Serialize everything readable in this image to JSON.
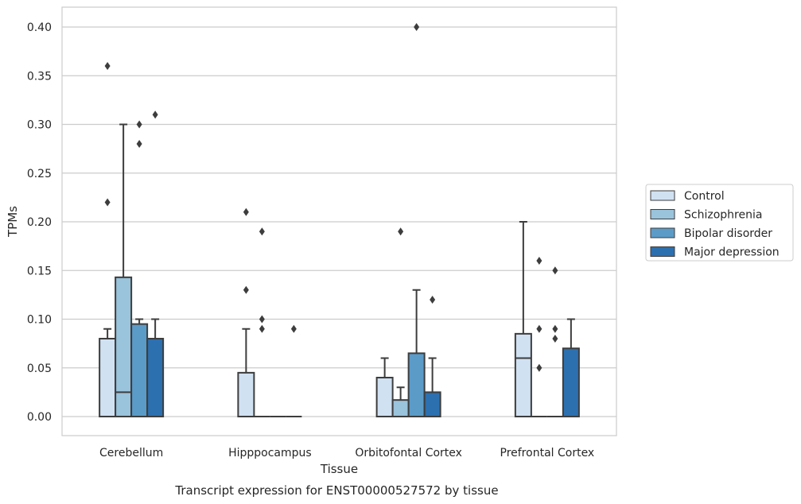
{
  "chart_data": {
    "type": "box",
    "title": "Transcript expression for ENST00000527572 by tissue",
    "xlabel": "Tissue",
    "ylabel": "TPMs",
    "ylim": [
      -0.02,
      0.42
    ],
    "yticks": [
      "0.00",
      "0.05",
      "0.10",
      "0.15",
      "0.20",
      "0.25",
      "0.30",
      "0.35",
      "0.40"
    ],
    "categories": [
      "Cerebellum",
      "Hipppocampus",
      "Orbitofontal Cortex",
      "Prefrontal Cortex"
    ],
    "grid": true,
    "legend_placement": "right",
    "series": [
      {
        "name": "Control",
        "color": "#d0e1f2",
        "boxes": [
          {
            "q1": 0,
            "median": 0,
            "q3": 0.08,
            "whisker_low": 0,
            "whisker_high": 0.09,
            "outliers": [
              0.22,
              0.36
            ]
          },
          {
            "q1": 0,
            "median": 0,
            "q3": 0.045,
            "whisker_low": 0,
            "whisker_high": 0.09,
            "outliers": [
              0.13,
              0.21
            ]
          },
          {
            "q1": 0,
            "median": 0,
            "q3": 0.04,
            "whisker_low": 0,
            "whisker_high": 0.06,
            "outliers": []
          },
          {
            "q1": 0,
            "median": 0.06,
            "q3": 0.085,
            "whisker_low": 0,
            "whisker_high": 0.2,
            "outliers": []
          }
        ]
      },
      {
        "name": "Schizophrenia",
        "color": "#9ac3dc",
        "boxes": [
          {
            "q1": 0,
            "median": 0.025,
            "q3": 0.143,
            "whisker_low": 0,
            "whisker_high": 0.3,
            "outliers": []
          },
          {
            "q1": 0,
            "median": 0,
            "q3": 0,
            "whisker_low": 0,
            "whisker_high": 0,
            "outliers": [
              0.09,
              0.1,
              0.19
            ]
          },
          {
            "q1": 0,
            "median": 0,
            "q3": 0.017,
            "whisker_low": 0,
            "whisker_high": 0.03,
            "outliers": [
              0.19
            ]
          },
          {
            "q1": 0,
            "median": 0,
            "q3": 0,
            "whisker_low": 0,
            "whisker_high": 0,
            "outliers": [
              0.05,
              0.09,
              0.16
            ]
          }
        ]
      },
      {
        "name": "Bipolar disorder",
        "color": "#5b9bc8",
        "boxes": [
          {
            "q1": 0,
            "median": 0,
            "q3": 0.095,
            "whisker_low": 0,
            "whisker_high": 0.1,
            "outliers": [
              0.28,
              0.3
            ]
          },
          {
            "q1": 0,
            "median": 0,
            "q3": 0,
            "whisker_low": 0,
            "whisker_high": 0,
            "outliers": []
          },
          {
            "q1": 0,
            "median": 0,
            "q3": 0.065,
            "whisker_low": 0,
            "whisker_high": 0.13,
            "outliers": [
              0.4
            ]
          },
          {
            "q1": 0,
            "median": 0,
            "q3": 0,
            "whisker_low": 0,
            "whisker_high": 0,
            "outliers": [
              0.08,
              0.09,
              0.15
            ]
          }
        ]
      },
      {
        "name": "Major depression",
        "color": "#2c70b0",
        "boxes": [
          {
            "q1": 0,
            "median": 0,
            "q3": 0.08,
            "whisker_low": 0,
            "whisker_high": 0.1,
            "outliers": [
              0.31
            ]
          },
          {
            "q1": 0,
            "median": 0,
            "q3": 0,
            "whisker_low": 0,
            "whisker_high": 0,
            "outliers": [
              0.09
            ]
          },
          {
            "q1": 0,
            "median": 0,
            "q3": 0.025,
            "whisker_low": 0,
            "whisker_high": 0.06,
            "outliers": [
              0.12
            ]
          },
          {
            "q1": 0,
            "median": 0,
            "q3": 0.07,
            "whisker_low": 0,
            "whisker_high": 0.1,
            "outliers": []
          }
        ]
      }
    ]
  }
}
